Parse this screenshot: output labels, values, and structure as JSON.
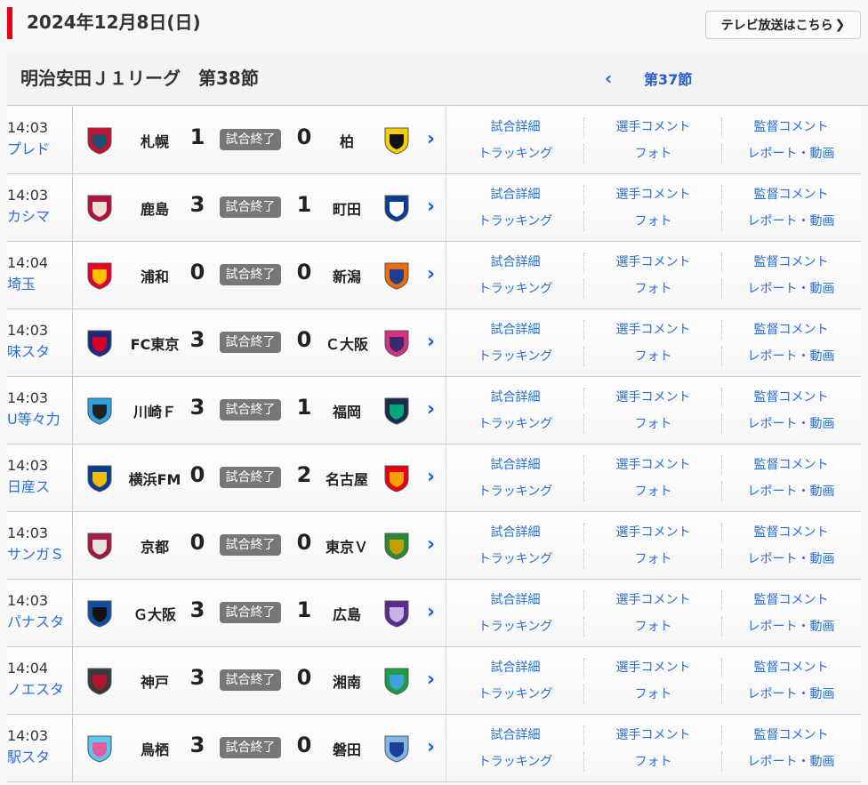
{
  "header": {
    "date": "2024年12月8日(日)",
    "tv_button": "テレビ放送はこちら",
    "tv_chevron": "❯"
  },
  "round": {
    "title": "明治安田Ｊ１リーグ　第38節",
    "prev_icon": "‹",
    "prev_label": "第37節"
  },
  "status_label": "試合終了",
  "links": [
    "試合詳細",
    "選手コメント",
    "監督コメント",
    "トラッキング",
    "フォト",
    "レポート・動画"
  ],
  "matches": [
    {
      "time": "14:03",
      "venue": "プレド",
      "home": "札幌",
      "home_score": "1",
      "away_score": "0",
      "away": "柏",
      "home_colors": [
        "#c8102e",
        "#1f4e6b"
      ],
      "away_colors": [
        "#f5d000",
        "#111111"
      ]
    },
    {
      "time": "14:03",
      "venue": "カシマ",
      "home": "鹿島",
      "home_score": "3",
      "away_score": "1",
      "away": "町田",
      "home_colors": [
        "#b5123b",
        "#f0e0d8"
      ],
      "away_colors": [
        "#0a3d91",
        "#ffffff"
      ]
    },
    {
      "time": "14:04",
      "venue": "埼玉",
      "home": "浦和",
      "home_score": "0",
      "away_score": "0",
      "away": "新潟",
      "home_colors": [
        "#e6002d",
        "#f8c200"
      ],
      "away_colors": [
        "#f26b00",
        "#1c3f94"
      ]
    },
    {
      "time": "14:03",
      "venue": "味スタ",
      "home": "FC東京",
      "home_score": "3",
      "away_score": "0",
      "away": "Ｃ大阪",
      "home_colors": [
        "#1a2b7a",
        "#d7002a"
      ],
      "away_colors": [
        "#d6337a",
        "#3a2a6e"
      ]
    },
    {
      "time": "14:03",
      "venue": "U等々力",
      "home": "川崎Ｆ",
      "home_score": "3",
      "away_score": "1",
      "away": "福岡",
      "home_colors": [
        "#2aa4e0",
        "#222222"
      ],
      "away_colors": [
        "#1a2b4c",
        "#00a77a"
      ]
    },
    {
      "time": "14:03",
      "venue": "日産ス",
      "home": "横浜FM",
      "home_score": "0",
      "away_score": "2",
      "away": "名古屋",
      "home_colors": [
        "#0a3d91",
        "#f0c000"
      ],
      "away_colors": [
        "#e60012",
        "#f5a200"
      ]
    },
    {
      "time": "14:03",
      "venue": "サンガＳ",
      "home": "京都",
      "home_score": "0",
      "away_score": "0",
      "away": "東京Ｖ",
      "home_colors": [
        "#a6193e",
        "#e8e0e0"
      ],
      "away_colors": [
        "#2a8a3a",
        "#c4a000"
      ]
    },
    {
      "time": "14:03",
      "venue": "パナスタ",
      "home": "Ｇ大阪",
      "home_score": "3",
      "away_score": "1",
      "away": "広島",
      "home_colors": [
        "#0b4ea2",
        "#111111"
      ],
      "away_colors": [
        "#5b2c8e",
        "#c8b4e0"
      ]
    },
    {
      "time": "14:04",
      "venue": "ノエスタ",
      "home": "神戸",
      "home_score": "3",
      "away_score": "0",
      "away": "湘南",
      "home_colors": [
        "#3a3a3a",
        "#b0162b"
      ],
      "away_colors": [
        "#1aa040",
        "#40a0e0"
      ]
    },
    {
      "time": "14:03",
      "venue": "駅スタ",
      "home": "鳥栖",
      "home_score": "3",
      "away_score": "0",
      "away": "磐田",
      "home_colors": [
        "#5ac8e8",
        "#e45c9c"
      ],
      "away_colors": [
        "#7fb8e6",
        "#1c3f94"
      ]
    }
  ]
}
